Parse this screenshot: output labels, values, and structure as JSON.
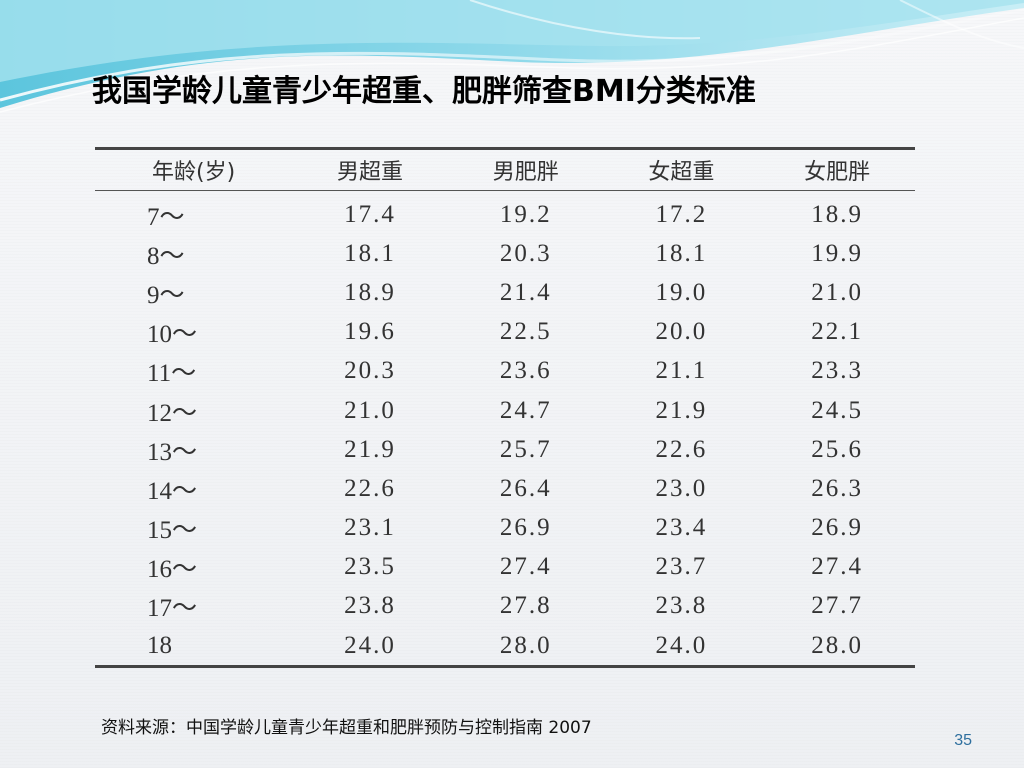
{
  "slide": {
    "title": "我国学龄儿童青少年超重、肥胖筛查BMI分类标准",
    "source": "资料来源：中国学龄儿童青少年超重和肥胖预防与控制指南 2007",
    "page_number": "35",
    "accent_color": "#7fd3e6"
  },
  "table": {
    "headers": [
      "年龄(岁)",
      "男超重",
      "男肥胖",
      "女超重",
      "女肥胖"
    ],
    "rows": [
      [
        "7～",
        "17.4",
        "19.2",
        "17.2",
        "18.9"
      ],
      [
        "8～",
        "18.1",
        "20.3",
        "18.1",
        "19.9"
      ],
      [
        "9～",
        "18.9",
        "21.4",
        "19.0",
        "21.0"
      ],
      [
        "10～",
        "19.6",
        "22.5",
        "20.0",
        "22.1"
      ],
      [
        "11～",
        "20.3",
        "23.6",
        "21.1",
        "23.3"
      ],
      [
        "12～",
        "21.0",
        "24.7",
        "21.9",
        "24.5"
      ],
      [
        "13～",
        "21.9",
        "25.7",
        "22.6",
        "25.6"
      ],
      [
        "14～",
        "22.6",
        "26.4",
        "23.0",
        "26.3"
      ],
      [
        "15～",
        "23.1",
        "26.9",
        "23.4",
        "26.9"
      ],
      [
        "16～",
        "23.5",
        "27.4",
        "23.7",
        "27.4"
      ],
      [
        "17～",
        "23.8",
        "27.8",
        "23.8",
        "27.7"
      ],
      [
        "18",
        "24.0",
        "28.0",
        "24.0",
        "28.0"
      ]
    ]
  }
}
